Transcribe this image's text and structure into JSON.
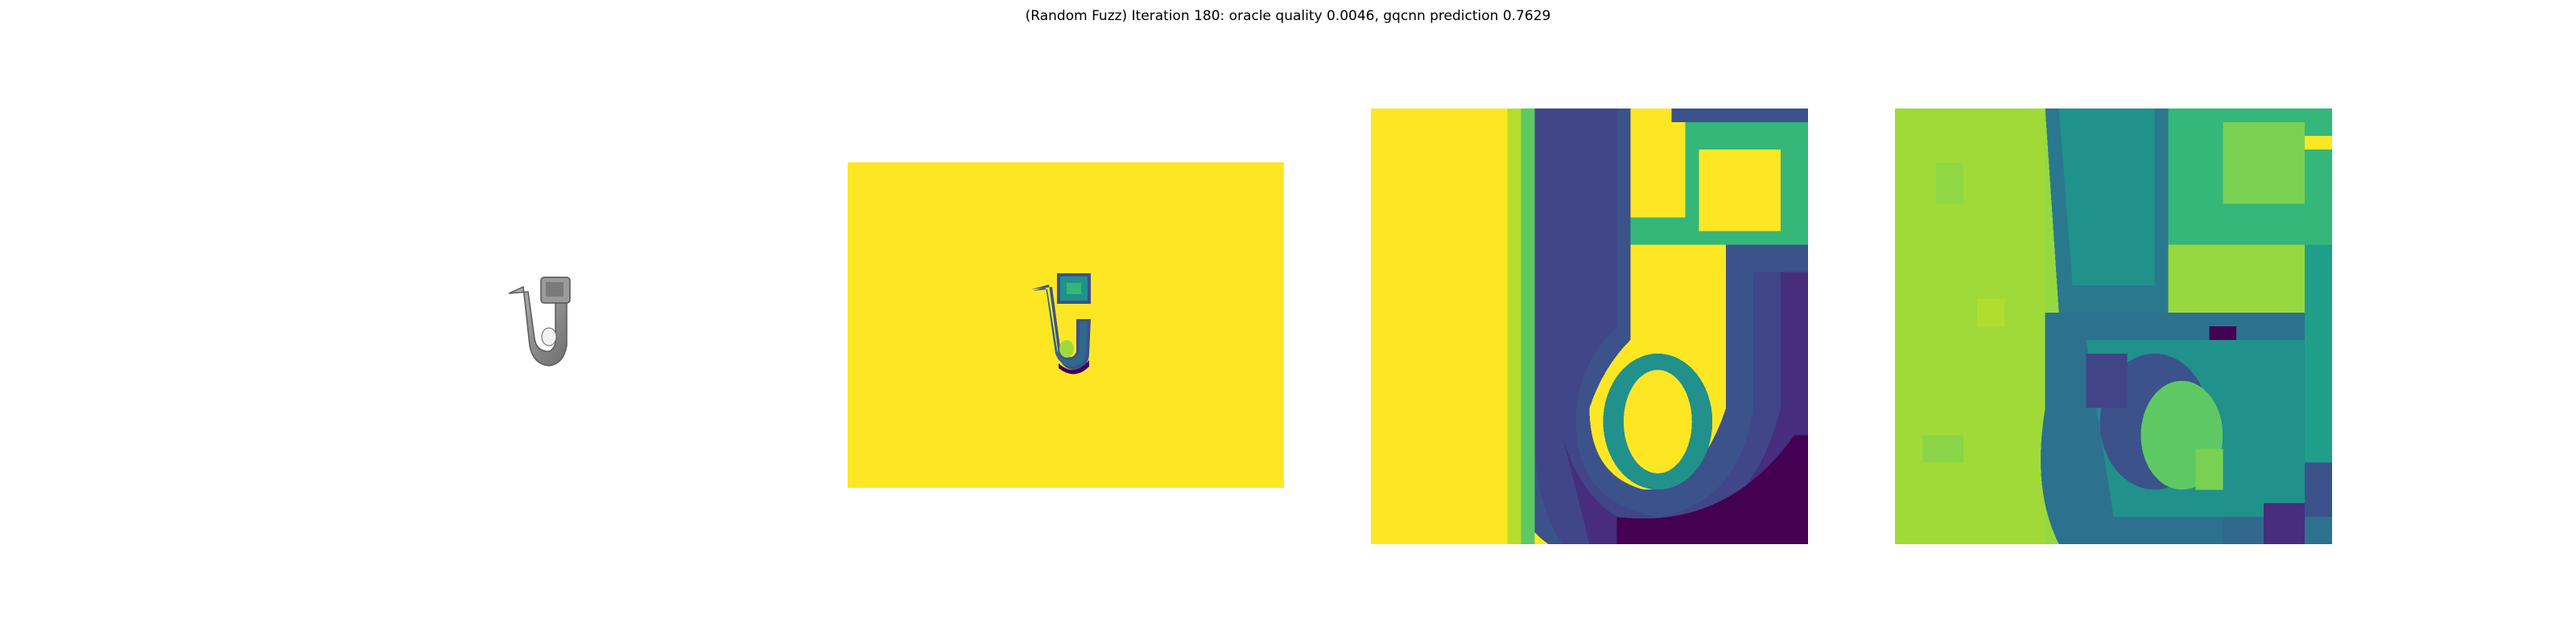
{
  "figure": {
    "title": "(Random Fuzz) Iteration 180: oracle quality 0.0046, gqcnn prediction 0.7629"
  },
  "colors": {
    "background": "#ffffff",
    "viridis_yellow": "#fde725",
    "viridis_green": "#9bd93c",
    "viridis_teal": "#21918c",
    "viridis_blue": "#3b528b",
    "viridis_purple": "#440154",
    "render_gray": "#8c8c8c"
  },
  "panels": [
    {
      "name": "rendered-object",
      "description_icon": "object-render"
    },
    {
      "name": "depth-image",
      "description_icon": "depth-map"
    },
    {
      "name": "depth-crop",
      "description_icon": "depth-crop"
    },
    {
      "name": "fuzzed-depth-crop",
      "description_icon": "fuzzed-crop"
    }
  ]
}
